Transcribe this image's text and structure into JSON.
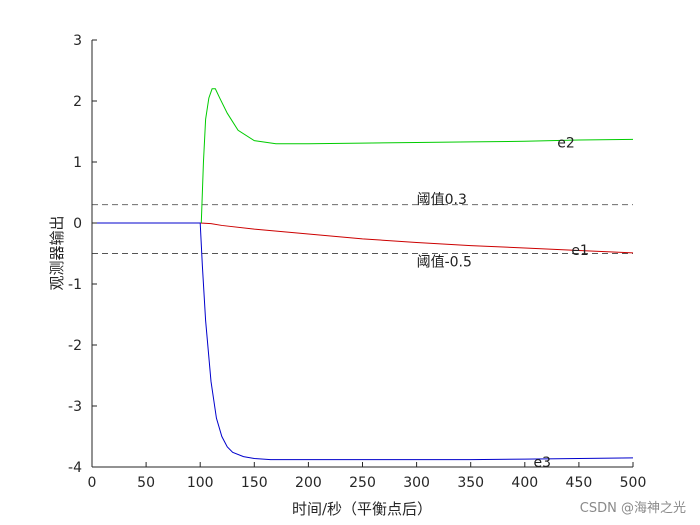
{
  "chart_data": {
    "type": "line",
    "title": "",
    "xlabel": "时间/秒（平衡点后）",
    "ylabel": "观测器输出",
    "xlim": [
      0,
      500
    ],
    "ylim": [
      -4,
      3
    ],
    "xticks": [
      "0",
      "50",
      "100",
      "150",
      "200",
      "250",
      "300",
      "350",
      "400",
      "450",
      "500"
    ],
    "yticks": [
      "3",
      "2",
      "1",
      "0",
      "-1",
      "-2",
      "-3",
      "-4"
    ],
    "grid": false,
    "legend": "none",
    "series": [
      {
        "name": "e1",
        "color": "#cc0000",
        "x": [
          0,
          50,
          100,
          110,
          120,
          150,
          200,
          250,
          300,
          350,
          400,
          450,
          500
        ],
        "y": [
          0,
          0,
          0,
          -0.01,
          -0.04,
          -0.1,
          -0.18,
          -0.26,
          -0.32,
          -0.37,
          -0.41,
          -0.45,
          -0.49
        ]
      },
      {
        "name": "e2",
        "color": "#00cc00",
        "x": [
          0,
          100,
          101,
          103,
          105,
          108,
          111,
          114,
          118,
          125,
          135,
          150,
          170,
          200,
          250,
          300,
          350,
          400,
          450,
          500
        ],
        "y": [
          null,
          null,
          0,
          1.0,
          1.7,
          2.05,
          2.2,
          2.2,
          2.05,
          1.8,
          1.52,
          1.35,
          1.3,
          1.3,
          1.31,
          1.32,
          1.33,
          1.34,
          1.36,
          1.37
        ]
      },
      {
        "name": "e3",
        "color": "#0000cc",
        "x": [
          0,
          50,
          100,
          102,
          105,
          110,
          115,
          120,
          125,
          130,
          140,
          150,
          165,
          180,
          200,
          250,
          300,
          350,
          400,
          450,
          500
        ],
        "y": [
          0,
          0,
          0,
          -0.7,
          -1.6,
          -2.6,
          -3.2,
          -3.5,
          -3.67,
          -3.76,
          -3.83,
          -3.86,
          -3.88,
          -3.88,
          -3.88,
          -3.88,
          -3.88,
          -3.88,
          -3.87,
          -3.86,
          -3.85
        ]
      }
    ],
    "thresholds": [
      {
        "value": 0.3,
        "label": "阈值0.3"
      },
      {
        "value": -0.5,
        "label": "阈值-0.5"
      }
    ],
    "line_labels": [
      {
        "text": "e2",
        "x": 430,
        "y": 1.32
      },
      {
        "text": "e1",
        "x": 443,
        "y": -0.44
      },
      {
        "text": "e3",
        "x": 408,
        "y": -3.92
      }
    ]
  },
  "watermark": "CSDN @海神之光"
}
